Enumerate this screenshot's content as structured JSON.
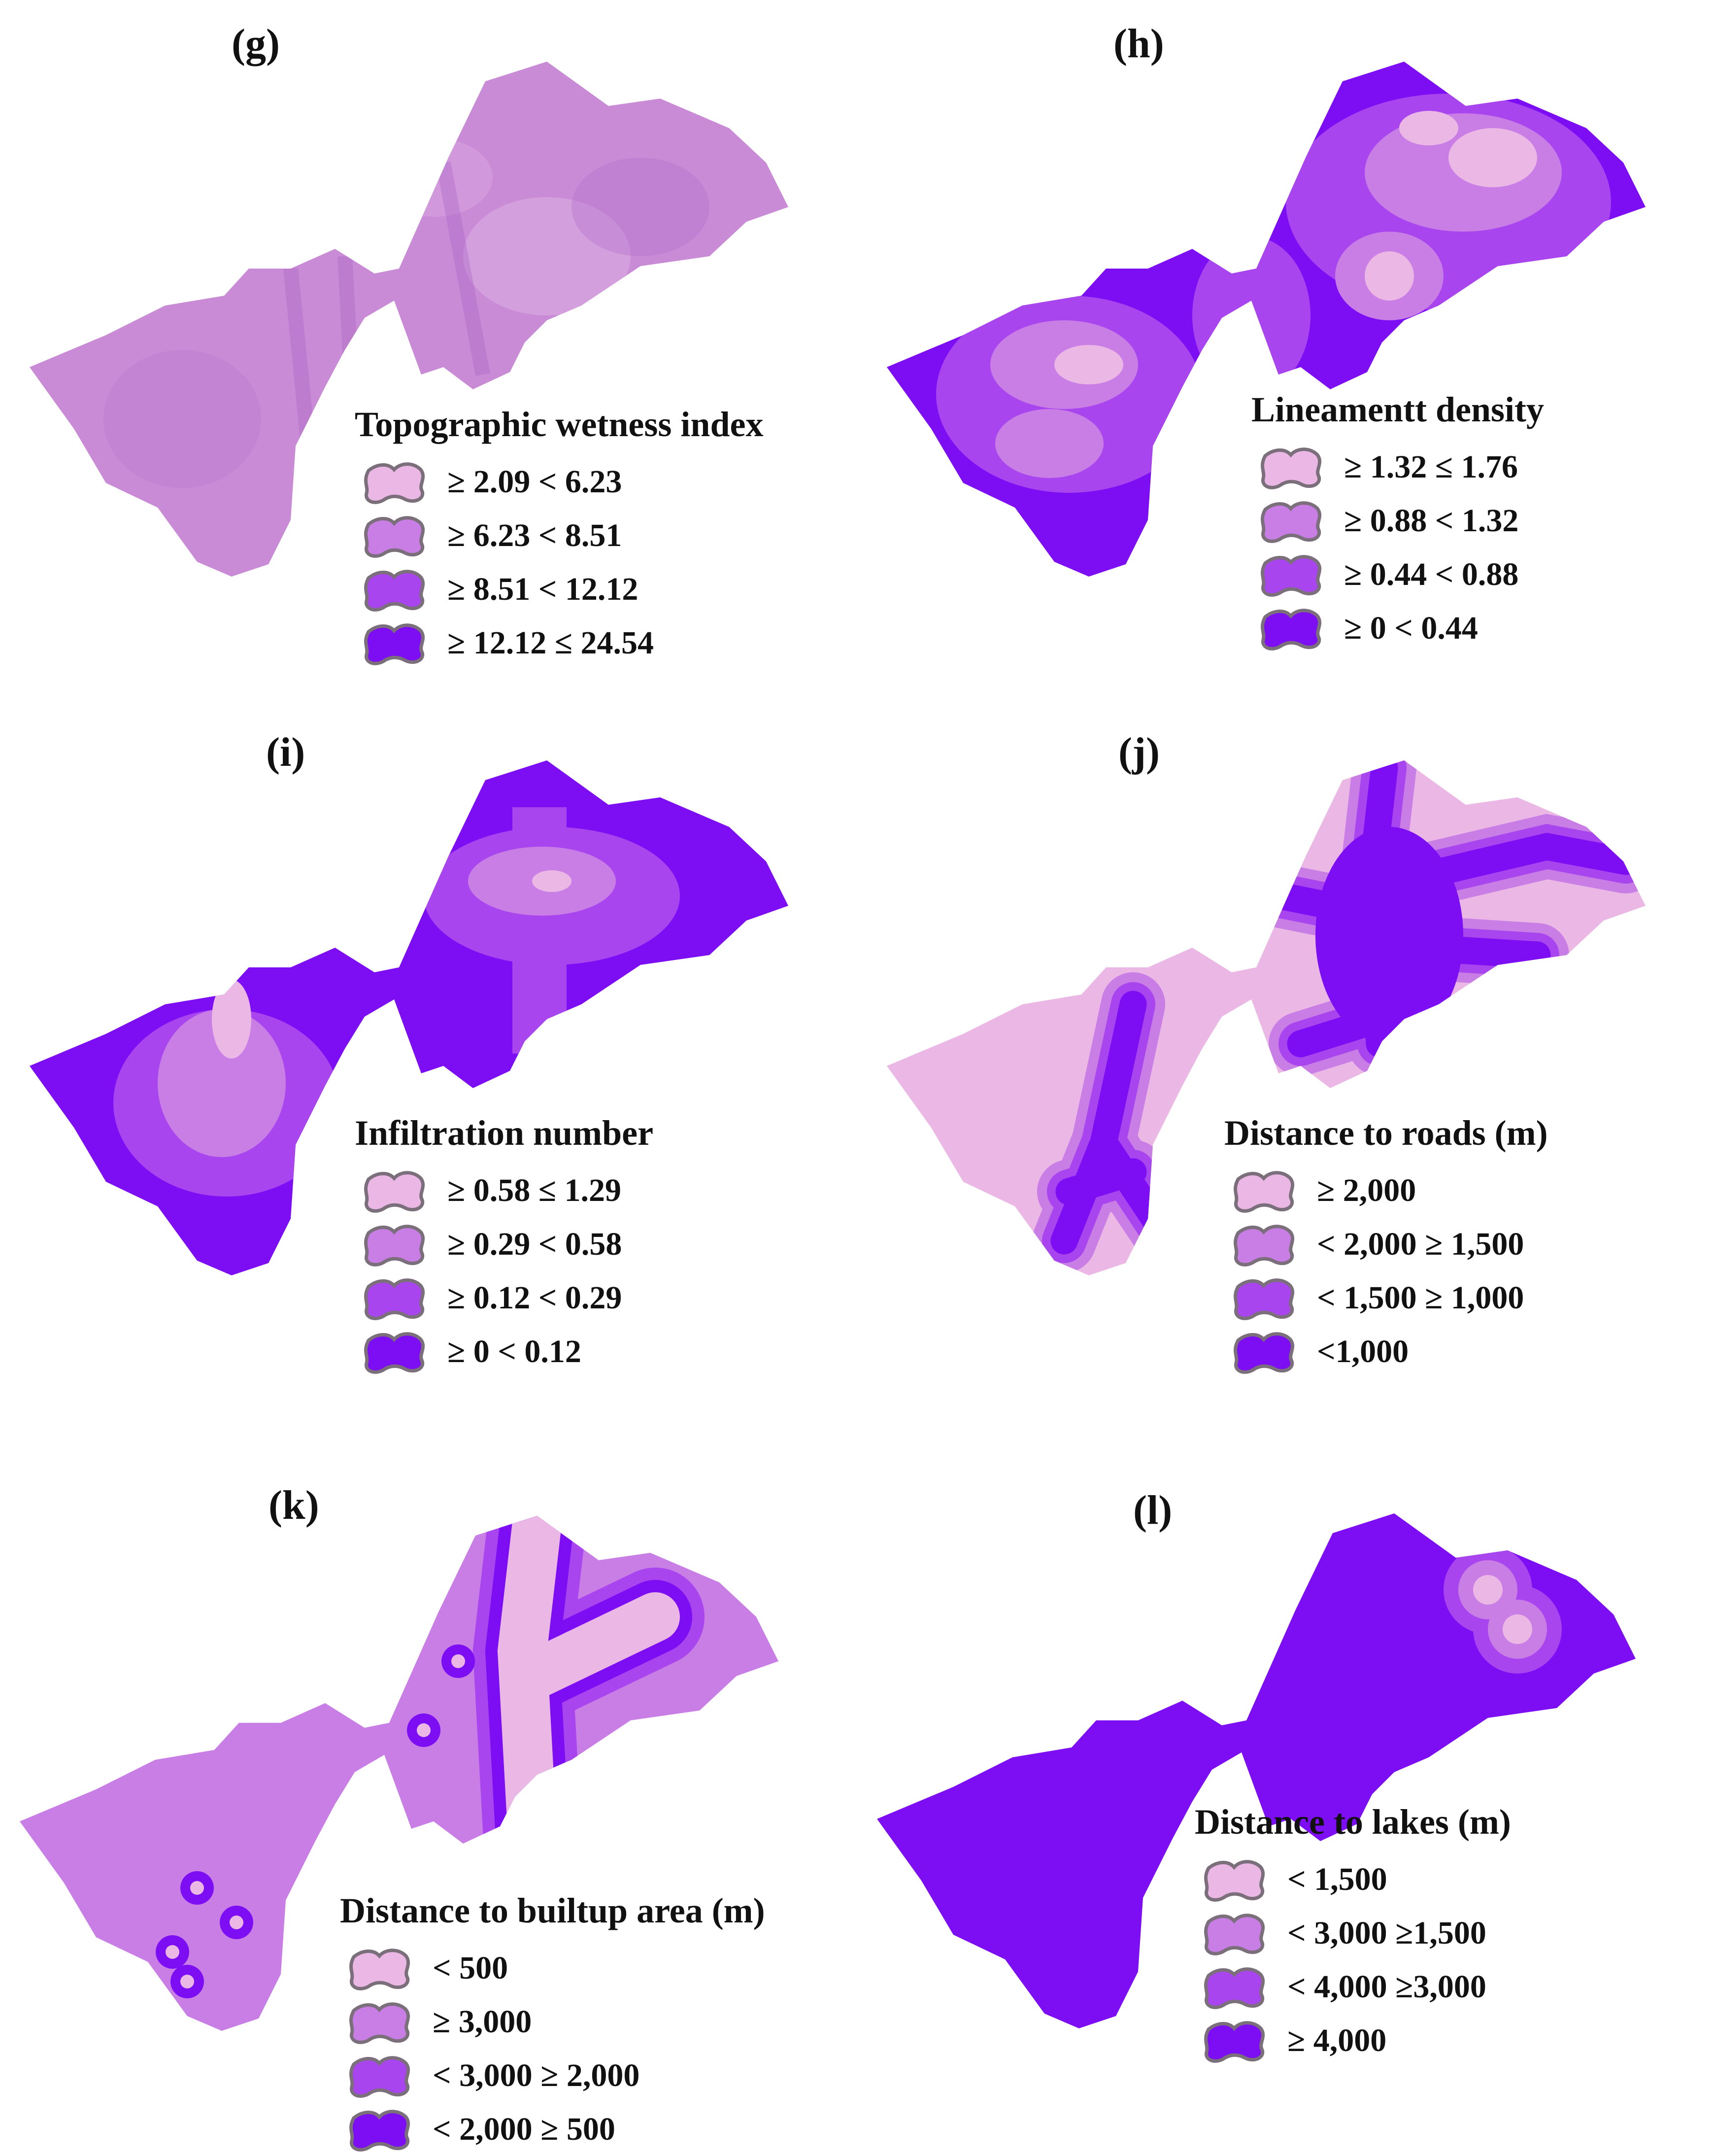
{
  "colors": {
    "c1": "#ebb8e6",
    "c2": "#c97ee6",
    "c3": "#a945ee",
    "c4": "#7d0df2",
    "stroke": "#7a6f7a"
  },
  "panels": [
    {
      "label": "(g)",
      "title": "Topographic wetness index",
      "classes": [
        "≥ 2.09 < 6.23",
        "≥ 6.23 < 8.51",
        "≥ 8.51 < 12.12",
        "≥ 12.12 ≤ 24.54"
      ]
    },
    {
      "label": "(h)",
      "title": "Lineamentt density",
      "classes": [
        "≥ 1.32 ≤ 1.76",
        "≥ 0.88 < 1.32",
        "≥ 0.44 < 0.88",
        "≥ 0 < 0.44"
      ]
    },
    {
      "label": "(i)",
      "title": "Infiltration number",
      "classes": [
        "≥ 0.58 ≤ 1.29",
        "≥ 0.29 < 0.58",
        "≥ 0.12 < 0.29",
        "≥ 0 < 0.12"
      ]
    },
    {
      "label": "(j)",
      "title": "Distance to roads (m)",
      "classes": [
        "≥ 2,000",
        "< 2,000 ≥ 1,500",
        "< 1,500 ≥ 1,000",
        "<1,000"
      ]
    },
    {
      "label": "(k)",
      "title": "Distance to builtup area (m)",
      "classes": [
        "< 500",
        "≥ 3,000",
        "< 3,000 ≥ 2,000",
        "< 2,000 ≥ 500"
      ]
    },
    {
      "label": "(l)",
      "title": "Distance to lakes (m)",
      "classes": [
        "< 1,500",
        "< 3,000 ≥1,500",
        "< 4,000 ≥3,000",
        "≥ 4,000"
      ]
    }
  ]
}
